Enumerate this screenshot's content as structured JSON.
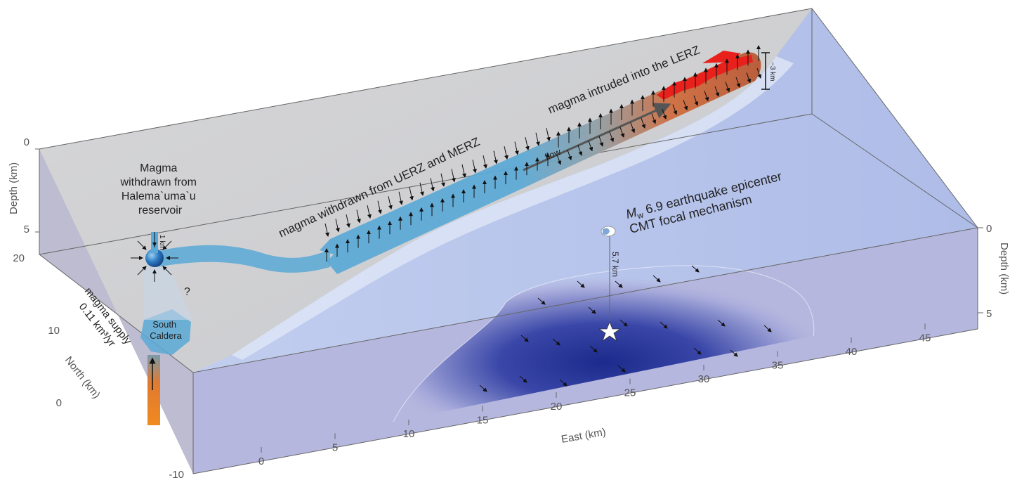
{
  "labels": {
    "magma_withdrawn_halema": [
      "Magma",
      "withdrawn from",
      "Halema`uma`u",
      "reservoir"
    ],
    "magma_withdrawn_uerz": "magma withdrawn from UERZ and MERZ",
    "magma_intruded_lerz": "magma intruded into the LERZ",
    "flow": "flow",
    "quake_mw_m": "M",
    "quake_mw_sub": "w",
    "quake_line1_rest": " 6.9 earthquake epicenter",
    "quake_line2": "CMT focal mechanism",
    "south_caldera": [
      "South",
      "Caldera"
    ],
    "magma_supply_1": "magma supply",
    "magma_supply_2": "0.11 km³/yr",
    "question": "?",
    "scale_1km": "1 km",
    "scale_3km": "~3 km",
    "depth_5_7km": "5.7 km"
  },
  "axes": {
    "east_label": "East (km)",
    "north_label": "North (km)",
    "depth_label_left": "Depth (km)",
    "depth_label_right": "Depth (km)",
    "east_ticks": [
      "0",
      "5",
      "10",
      "15",
      "20",
      "25",
      "30",
      "35",
      "40",
      "45"
    ],
    "north_ticks": [
      "20",
      "10",
      "0",
      "-10"
    ],
    "depth_ticks_left": [
      "0",
      "5"
    ],
    "depth_ticks_right": [
      "0",
      "5"
    ]
  },
  "colors": {
    "magma_blue": "#5aa9d6",
    "magma_hot": "#c0552a",
    "intrusion_red": "#e8211c",
    "slip_blue": "#1b2a8c",
    "ocean": "#b7c4ec",
    "box_side": "#b6b7de"
  }
}
